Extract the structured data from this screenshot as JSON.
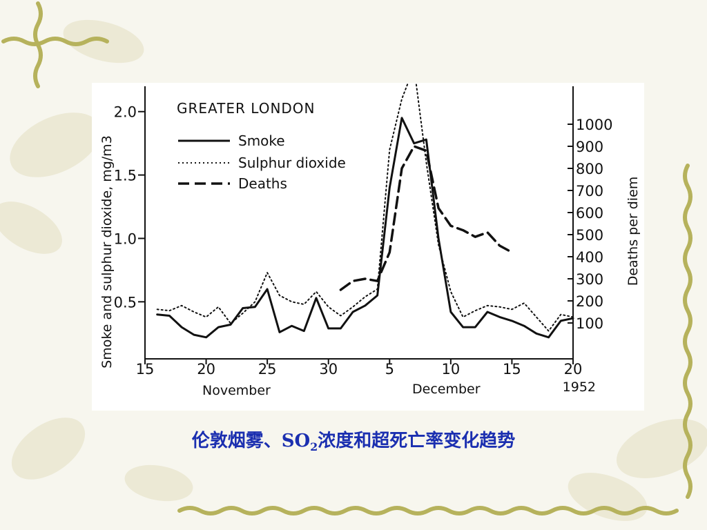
{
  "slide": {
    "caption_before": "伦敦烟雾、SO",
    "caption_sub": "2",
    "caption_after": "浓度和超死亡率变化趋势",
    "colors": {
      "caption": "#1b2fb0",
      "vine": "#b6b25c",
      "leaf": "#e9e6cf"
    }
  },
  "chart_data": {
    "type": "line",
    "title": "GREATER LONDON",
    "ylabel": "Smoke and sulphur dioxide, mg/m3",
    "y2label": "Deaths per diem",
    "ylim": [
      0.05,
      2.2
    ],
    "y2lim": [
      0,
      1000
    ],
    "yticks": [
      "0.5",
      "1.0",
      "1.5",
      "2.0"
    ],
    "y2ticks": [
      "100",
      "200",
      "300",
      "400",
      "500",
      "600",
      "700",
      "800",
      "900",
      "1000"
    ],
    "xticks": [
      "15",
      "20",
      "25",
      "30",
      "5",
      "10",
      "15",
      "20"
    ],
    "months": [
      "November",
      "December"
    ],
    "year": "1952",
    "legend_position": "top-left",
    "legend": [
      "Smoke",
      "Sulphur dioxide",
      "Deaths"
    ],
    "series": [
      {
        "name": "Smoke",
        "axis": "left",
        "style": "solid",
        "x": [
          "11-16",
          "11-17",
          "11-18",
          "11-19",
          "11-20",
          "11-21",
          "11-22",
          "11-23",
          "11-24",
          "11-25",
          "11-26",
          "11-27",
          "11-28",
          "11-29",
          "11-30",
          "12-01",
          "12-02",
          "12-03",
          "12-04",
          "12-05",
          "12-06",
          "12-07",
          "12-08",
          "12-09",
          "12-10",
          "12-11",
          "12-12",
          "12-13",
          "12-14",
          "12-15",
          "12-16",
          "12-17",
          "12-18",
          "12-19",
          "12-20"
        ],
        "y": [
          0.4,
          0.39,
          0.3,
          0.24,
          0.22,
          0.3,
          0.32,
          0.45,
          0.46,
          0.6,
          0.26,
          0.31,
          0.27,
          0.53,
          0.29,
          0.29,
          0.42,
          0.47,
          0.55,
          1.4,
          1.95,
          1.75,
          1.78,
          1.0,
          0.42,
          0.3,
          0.3,
          0.42,
          0.38,
          0.35,
          0.31,
          0.25,
          0.22,
          0.35,
          0.37
        ]
      },
      {
        "name": "Sulphur dioxide",
        "axis": "left",
        "style": "dotted",
        "x": [
          "11-16",
          "11-17",
          "11-18",
          "11-19",
          "11-20",
          "11-21",
          "11-22",
          "11-23",
          "11-24",
          "11-25",
          "11-26",
          "11-27",
          "11-28",
          "11-29",
          "11-30",
          "12-01",
          "12-02",
          "12-03",
          "12-04",
          "12-05",
          "12-06",
          "12-07",
          "12-08",
          "12-09",
          "12-10",
          "12-11",
          "12-12",
          "12-13",
          "12-14",
          "12-15",
          "12-16",
          "12-17",
          "12-18",
          "12-19",
          "12-20"
        ],
        "y": [
          0.44,
          0.43,
          0.47,
          0.42,
          0.38,
          0.46,
          0.33,
          0.41,
          0.5,
          0.73,
          0.55,
          0.5,
          0.48,
          0.58,
          0.46,
          0.39,
          0.46,
          0.54,
          0.6,
          1.7,
          2.1,
          2.35,
          1.6,
          0.95,
          0.58,
          0.38,
          0.43,
          0.47,
          0.46,
          0.44,
          0.49,
          0.38,
          0.27,
          0.4,
          0.38
        ]
      },
      {
        "name": "Deaths",
        "axis": "right",
        "style": "dashed",
        "x": [
          "12-01",
          "12-02",
          "12-03",
          "12-04",
          "12-05",
          "12-06",
          "12-07",
          "12-08",
          "12-09",
          "12-10",
          "12-11",
          "12-12",
          "12-13",
          "12-14",
          "12-15"
        ],
        "y": [
          250,
          290,
          300,
          290,
          420,
          800,
          900,
          880,
          620,
          540,
          520,
          490,
          510,
          450,
          420
        ]
      }
    ]
  }
}
